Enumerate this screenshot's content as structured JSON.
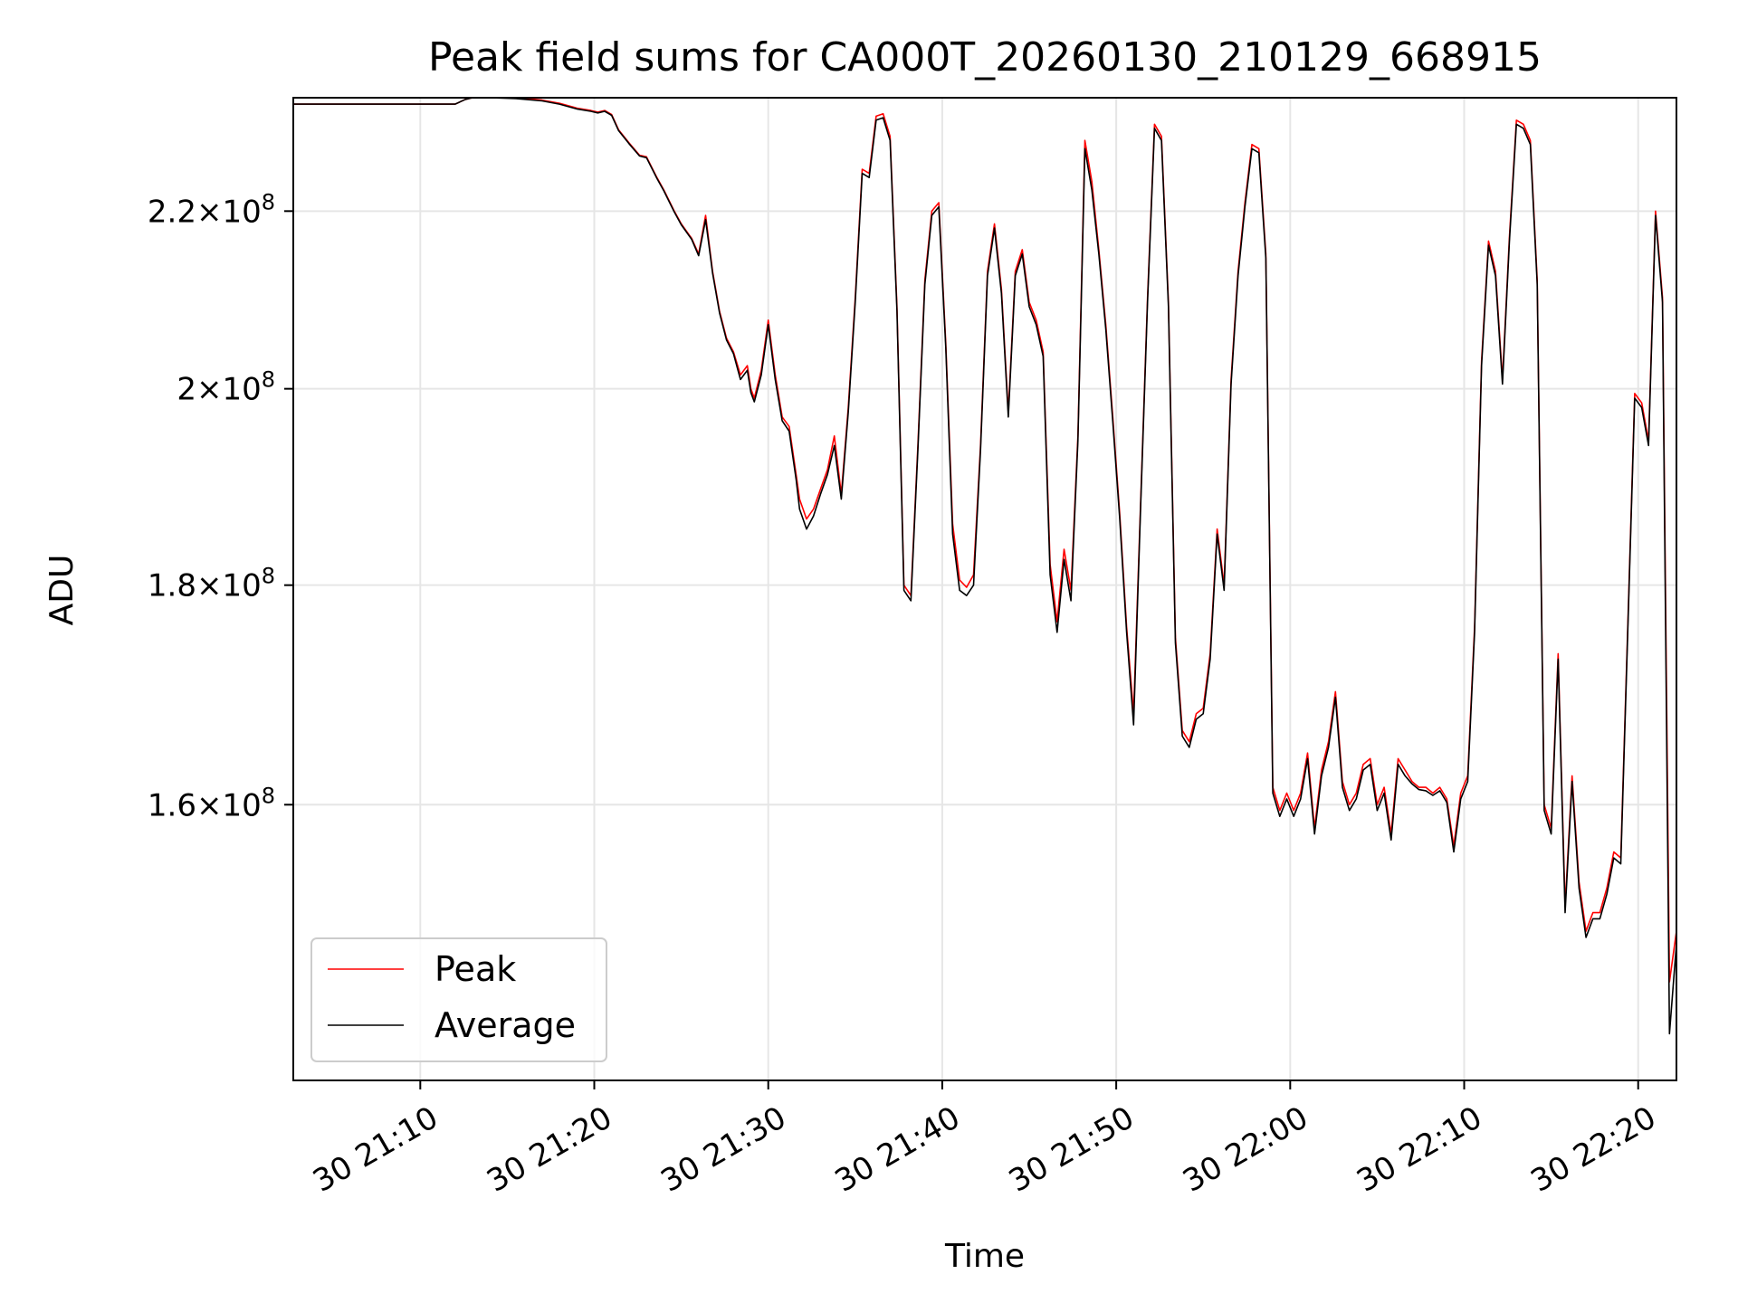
{
  "chart_data": {
    "type": "line",
    "title": "Peak field sums for CA000T_20260130_210129_668915",
    "xlabel": "Time",
    "ylabel": "ADU",
    "yscale": "log",
    "grid": true,
    "legend_position": "lower-left",
    "x_unit": "minutes after 30 21:00",
    "xlim": [
      2.7,
      82.2
    ],
    "ylim": [
      138000000,
      233800000
    ],
    "x_ticks": [
      {
        "value": 10,
        "label": "30 21:10"
      },
      {
        "value": 20,
        "label": "30 21:20"
      },
      {
        "value": 30,
        "label": "30 21:30"
      },
      {
        "value": 40,
        "label": "30 21:40"
      },
      {
        "value": 50,
        "label": "30 21:50"
      },
      {
        "value": 60,
        "label": "30 22:00"
      },
      {
        "value": 70,
        "label": "30 22:10"
      },
      {
        "value": 80,
        "label": "30 22:20"
      }
    ],
    "y_ticks": [
      {
        "value": 160000000,
        "label": "1.6×10⁸",
        "mant": "1.6",
        "exp": "8"
      },
      {
        "value": 180000000,
        "label": "1.8×10⁸",
        "mant": "1.8",
        "exp": "8"
      },
      {
        "value": 200000000,
        "label": "2×10⁸",
        "mant": "2",
        "exp": "8"
      },
      {
        "value": 220000000,
        "label": "2.2×10⁸",
        "mant": "2.2",
        "exp": "8"
      }
    ],
    "x": [
      2.7,
      12.0,
      12.6,
      13.0,
      14.0,
      15.5,
      17.0,
      18.0,
      19.0,
      19.8,
      20.2,
      20.6,
      21.0,
      21.4,
      22.0,
      22.6,
      23.0,
      23.6,
      24.0,
      24.6,
      25.0,
      25.6,
      26.0,
      26.4,
      26.8,
      27.2,
      27.6,
      28.0,
      28.4,
      28.8,
      29.0,
      29.2,
      29.6,
      30.0,
      30.4,
      30.8,
      31.2,
      31.6,
      31.8,
      32.2,
      32.6,
      33.0,
      33.4,
      33.8,
      34.2,
      34.6,
      35.0,
      35.4,
      35.8,
      36.2,
      36.6,
      37.0,
      37.4,
      37.8,
      38.2,
      38.6,
      39.0,
      39.4,
      39.8,
      40.2,
      40.6,
      41.0,
      41.4,
      41.8,
      42.2,
      42.6,
      43.0,
      43.4,
      43.8,
      44.2,
      44.6,
      45.0,
      45.4,
      45.8,
      46.2,
      46.6,
      47.0,
      47.4,
      47.8,
      48.2,
      48.6,
      49.0,
      49.4,
      49.8,
      50.2,
      50.6,
      51.0,
      51.4,
      51.8,
      52.2,
      52.6,
      53.0,
      53.4,
      53.8,
      54.2,
      54.6,
      55.0,
      55.4,
      55.8,
      56.2,
      56.6,
      57.0,
      57.4,
      57.8,
      58.2,
      58.6,
      59.0,
      59.4,
      59.8,
      60.2,
      60.6,
      61.0,
      61.4,
      61.8,
      62.2,
      62.6,
      63.0,
      63.4,
      63.8,
      64.2,
      64.6,
      65.0,
      65.4,
      65.8,
      66.2,
      66.6,
      67.0,
      67.4,
      67.8,
      68.2,
      68.6,
      69.0,
      69.4,
      69.8,
      70.2,
      70.6,
      71.0,
      71.4,
      71.8,
      72.2,
      72.6,
      73.0,
      73.4,
      73.8,
      74.2,
      74.6,
      75.0,
      75.4,
      75.8,
      76.2,
      76.6,
      77.0,
      77.4,
      77.8,
      78.2,
      78.6,
      79.0,
      79.4,
      79.8,
      80.2,
      80.6,
      81.0,
      81.4,
      81.8,
      82.2
    ],
    "series": [
      {
        "name": "Peak",
        "color": "#ff0000",
        "values": [
          233000000,
          233000000,
          233600000,
          233800000,
          233800000,
          233800000,
          233500000,
          233100000,
          232500000,
          232200000,
          232000000,
          232200000,
          231700000,
          229800000,
          228200000,
          226700000,
          226500000,
          224000000,
          222500000,
          220000000,
          218500000,
          216800000,
          215000000,
          219500000,
          213000000,
          208500000,
          205500000,
          204000000,
          201500000,
          202500000,
          200000000,
          199000000,
          202000000,
          207500000,
          201500000,
          197000000,
          196000000,
          191000000,
          188500000,
          186500000,
          187500000,
          189500000,
          191500000,
          195000000,
          189000000,
          198000000,
          210000000,
          225000000,
          224500000,
          231500000,
          231800000,
          229000000,
          209000000,
          180000000,
          179000000,
          194000000,
          212000000,
          220000000,
          221000000,
          205000000,
          186000000,
          180500000,
          179800000,
          181000000,
          194000000,
          213000000,
          218500000,
          211000000,
          197500000,
          213000000,
          215500000,
          209500000,
          207500000,
          204000000,
          182000000,
          176500000,
          183500000,
          179500000,
          195000000,
          228500000,
          223500000,
          215500000,
          207000000,
          197000000,
          187000000,
          176000000,
          168000000,
          188000000,
          210000000,
          230500000,
          229000000,
          209500000,
          175000000,
          166500000,
          165500000,
          168000000,
          168500000,
          173500000,
          185500000,
          180000000,
          201000000,
          213000000,
          221000000,
          228000000,
          227500000,
          215000000,
          161500000,
          159500000,
          161000000,
          159500000,
          161000000,
          164500000,
          158000000,
          163000000,
          165500000,
          170000000,
          162000000,
          160000000,
          161000000,
          163500000,
          164000000,
          160000000,
          161500000,
          157500000,
          164000000,
          163000000,
          162000000,
          161500000,
          161500000,
          161000000,
          161500000,
          160500000,
          156500000,
          161000000,
          162500000,
          176000000,
          203000000,
          216500000,
          213000000,
          201000000,
          217000000,
          231000000,
          230500000,
          228500000,
          212000000,
          160000000,
          158000000,
          173500000,
          151500000,
          162500000,
          153500000,
          149500000,
          151000000,
          151000000,
          153000000,
          156000000,
          155500000,
          176000000,
          199500000,
          198500000,
          194500000,
          220000000,
          210000000,
          145500000,
          149500000
        ],
        "label": "Peak"
      },
      {
        "name": "Average",
        "color": "#000000",
        "values": [
          233000000,
          233000000,
          233600000,
          233800000,
          233800000,
          233700000,
          233400000,
          233000000,
          232400000,
          232100000,
          231900000,
          232100000,
          231600000,
          229700000,
          228100000,
          226600000,
          226400000,
          223900000,
          222400000,
          219900000,
          218400000,
          216700000,
          214800000,
          219000000,
          212800000,
          208300000,
          205300000,
          203800000,
          201000000,
          202000000,
          199600000,
          198600000,
          201500000,
          207000000,
          201000000,
          196600000,
          195500000,
          190500000,
          187500000,
          185500000,
          186800000,
          189000000,
          191000000,
          194000000,
          188500000,
          197500000,
          209500000,
          224500000,
          224000000,
          231000000,
          231300000,
          228500000,
          208500000,
          179500000,
          178500000,
          193500000,
          211500000,
          219500000,
          220500000,
          204500000,
          185000000,
          179500000,
          179000000,
          180000000,
          193500000,
          212500000,
          218000000,
          210500000,
          197000000,
          212500000,
          215000000,
          209000000,
          207000000,
          203500000,
          181000000,
          175500000,
          182500000,
          178500000,
          194500000,
          227500000,
          222500000,
          215000000,
          206500000,
          196500000,
          186500000,
          175500000,
          167000000,
          187500000,
          209500000,
          230000000,
          228500000,
          209000000,
          174500000,
          166000000,
          165000000,
          167500000,
          168000000,
          173000000,
          185000000,
          179500000,
          200500000,
          212500000,
          220500000,
          227500000,
          227000000,
          214500000,
          161000000,
          159000000,
          160500000,
          159000000,
          160500000,
          164000000,
          157500000,
          162500000,
          165000000,
          169500000,
          161500000,
          159500000,
          160500000,
          163000000,
          163500000,
          159500000,
          161000000,
          157000000,
          163500000,
          162500000,
          161800000,
          161300000,
          161200000,
          160800000,
          161200000,
          160200000,
          156000000,
          160500000,
          162000000,
          175500000,
          202500000,
          216000000,
          212500000,
          200500000,
          216500000,
          230500000,
          230000000,
          228000000,
          211500000,
          159500000,
          157500000,
          173000000,
          151000000,
          162000000,
          153000000,
          149000000,
          150500000,
          150500000,
          152500000,
          155500000,
          155000000,
          175500000,
          199000000,
          198000000,
          194000000,
          219500000,
          209500000,
          141500000,
          148500000
        ],
        "label": "Average"
      }
    ]
  }
}
